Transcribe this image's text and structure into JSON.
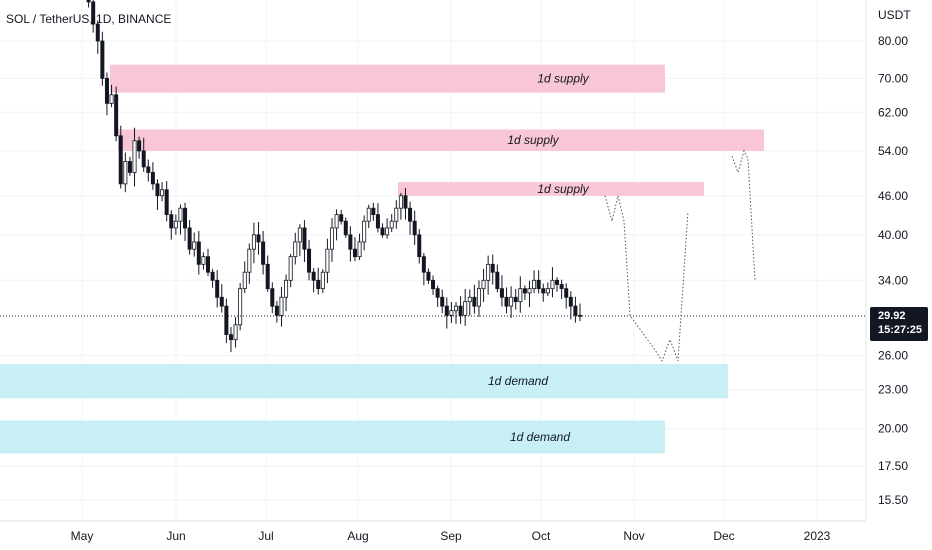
{
  "chart_data": {
    "type": "candlestick",
    "title": "SOL / TetherUS, 1D, BINANCE",
    "currency": "USDT",
    "scale": "log",
    "y_ticks": [
      80.0,
      70.0,
      62.0,
      54.0,
      46.0,
      40.0,
      34.0,
      26.0,
      23.0,
      20.0,
      17.5,
      15.5
    ],
    "y_tick_labels": [
      "80.00",
      "70.00",
      "62.00",
      "54.00",
      "46.00",
      "40.00",
      "34.00",
      "26.00",
      "23.00",
      "20.00",
      "17.50",
      "15.50"
    ],
    "x_labels": [
      "May",
      "Jun",
      "Jul",
      "Aug",
      "Sep",
      "Oct",
      "Nov",
      "Dec",
      "2023"
    ],
    "last_price": "29.92",
    "countdown": "15:27:25",
    "zones": [
      {
        "kind": "supply",
        "label": "1d supply",
        "low": 66.5,
        "high": 73.5
      },
      {
        "kind": "supply",
        "label": "1d supply",
        "low": 54.0,
        "high": 58.3
      },
      {
        "kind": "supply",
        "label": "1d supply",
        "low": 46.0,
        "high": 48.3
      },
      {
        "kind": "demand",
        "label": "1d demand",
        "low": 22.3,
        "high": 25.2
      },
      {
        "kind": "demand",
        "label": "1d demand",
        "low": 18.3,
        "high": 20.6
      }
    ],
    "closes": [
      98,
      92,
      85,
      80,
      70,
      64,
      66,
      57,
      48,
      52,
      50,
      56,
      54,
      51,
      50,
      48,
      46,
      47,
      43,
      41,
      42,
      44,
      41,
      38,
      39,
      36,
      37,
      35,
      34,
      32,
      31,
      28,
      27.5,
      29,
      33,
      35,
      38,
      40,
      39,
      36,
      33,
      31,
      30,
      32,
      34,
      37,
      39,
      41,
      38,
      35,
      34,
      33,
      35,
      38,
      41,
      43,
      42,
      40,
      38,
      37,
      39,
      42,
      44,
      43,
      41,
      40,
      41,
      42,
      44,
      46,
      44,
      42,
      40,
      37,
      35,
      34,
      33,
      32,
      31,
      30,
      30.5,
      31,
      30,
      31.5,
      32,
      31,
      33,
      34,
      36,
      35,
      33,
      32,
      31,
      32,
      31.5,
      33,
      32.5,
      33,
      34,
      33,
      32.5,
      33,
      34,
      33.5,
      33,
      32,
      31,
      30,
      29.9
    ],
    "colors": {
      "up": "#26a69a",
      "down": "#131722",
      "supply": "#f8c6d4",
      "demand": "#c8eff4",
      "price_tag": "#131722"
    }
  },
  "axis": {
    "currency": "USDT",
    "price_tag": "29.92",
    "countdown_tag": "15:27:25"
  }
}
